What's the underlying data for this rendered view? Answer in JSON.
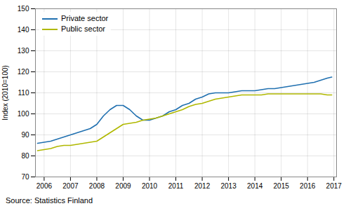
{
  "chart_data": {
    "type": "line",
    "ylabel": "Index (2010=100)",
    "source": "Source: Statistics Finland",
    "x": [
      2005.75,
      2006.0,
      2006.25,
      2006.5,
      2006.75,
      2007.0,
      2007.25,
      2007.5,
      2007.75,
      2008.0,
      2008.25,
      2008.5,
      2008.75,
      2009.0,
      2009.25,
      2009.5,
      2009.75,
      2010.0,
      2010.25,
      2010.5,
      2010.75,
      2011.0,
      2011.25,
      2011.5,
      2011.75,
      2012.0,
      2012.25,
      2012.5,
      2012.75,
      2013.0,
      2013.25,
      2013.5,
      2013.75,
      2014.0,
      2014.25,
      2014.5,
      2014.75,
      2015.0,
      2015.25,
      2015.5,
      2015.75,
      2016.0,
      2016.25,
      2016.5,
      2016.75,
      2016.92
    ],
    "series": [
      {
        "name": "Private sector",
        "color": "#2070b0",
        "values": [
          86,
          86.5,
          87,
          88,
          89,
          90,
          91,
          92,
          93,
          95,
          99,
          102,
          104,
          104,
          102,
          99,
          97,
          97,
          98,
          99,
          101,
          102,
          104,
          105,
          107,
          108,
          109.5,
          110,
          110,
          110,
          110.5,
          111,
          111,
          111,
          111.5,
          112,
          112,
          112.5,
          113,
          113.5,
          114,
          114.5,
          115,
          116,
          117,
          117.5
        ]
      },
      {
        "name": "Public sector",
        "color": "#b0b800",
        "values": [
          82.5,
          83,
          83.5,
          84.5,
          85,
          85,
          85.5,
          86,
          86.5,
          87,
          89,
          91,
          93,
          95,
          95.5,
          96,
          97,
          97.5,
          98,
          99,
          100,
          101,
          102,
          103.5,
          104.5,
          105,
          106,
          107,
          107.5,
          108,
          108.5,
          109,
          109,
          109,
          109,
          109.5,
          109.5,
          109.5,
          109.5,
          109.5,
          109.5,
          109.5,
          109.5,
          109.5,
          109,
          109
        ]
      }
    ],
    "xlim": [
      2005.67,
      2017.1
    ],
    "xticks": [
      2006,
      2007,
      2008,
      2009,
      2010,
      2011,
      2012,
      2013,
      2014,
      2015,
      2016,
      2017
    ],
    "ylim": [
      70,
      150
    ],
    "yticks": [
      70,
      80,
      90,
      100,
      110,
      120,
      130,
      140,
      150
    ],
    "grid": true,
    "legend": "upper left"
  }
}
